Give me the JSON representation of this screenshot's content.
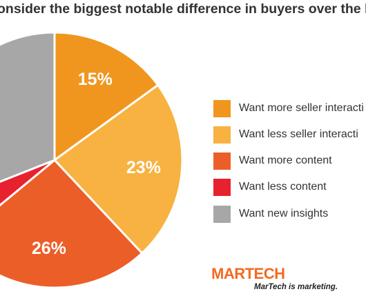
{
  "chart_data": {
    "type": "pie",
    "title": "onsider the biggest notable difference in buyers over the las",
    "slices": [
      {
        "name": "Want more seller interactions",
        "value": 15,
        "label": "15%",
        "color": "#f0961f"
      },
      {
        "name": "Want less seller interactions",
        "value": 23,
        "label": "23%",
        "color": "#f8b241"
      },
      {
        "name": "Want more content",
        "value": 26,
        "label": "26%",
        "color": "#ec5e28"
      },
      {
        "name": "Want less content",
        "value": 5,
        "label": "",
        "color": "#e8212e"
      },
      {
        "name": "Want new insights",
        "value": 31,
        "label": "",
        "color": "#a7a7a7"
      }
    ],
    "legend": {
      "position": "right",
      "items": [
        {
          "label": "Want more seller interacti",
          "color": "#f0961f"
        },
        {
          "label": "Want less seller interacti",
          "color": "#f8b241"
        },
        {
          "label": "Want more content",
          "color": "#ec5e28"
        },
        {
          "label": "Want less content",
          "color": "#e8212e"
        },
        {
          "label": "Want new insights",
          "color": "#a7a7a7"
        }
      ]
    }
  },
  "brand": {
    "logo_text": "MARTECH",
    "tagline": "MarTech is marketing."
  }
}
